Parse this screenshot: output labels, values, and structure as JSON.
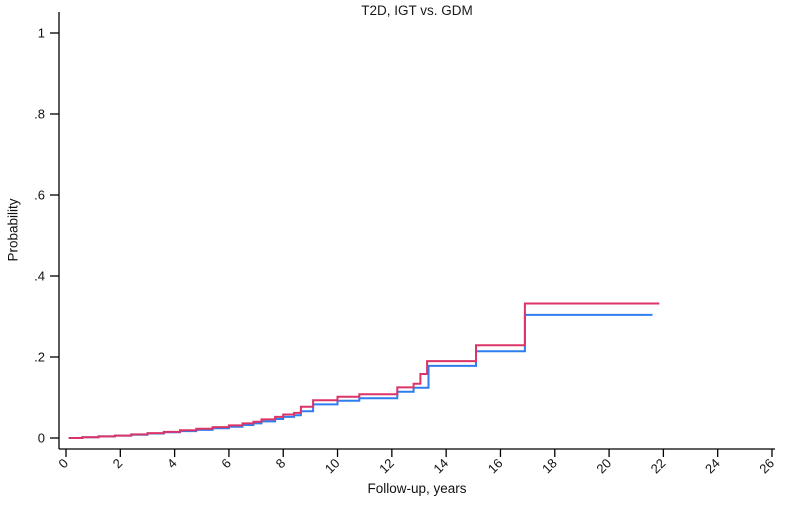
{
  "chart_data": {
    "type": "line",
    "subtype": "step",
    "title": "T2D, IGT vs. GDM",
    "xlabel": "Follow-up, years",
    "ylabel": "Probability",
    "xlim": [
      0,
      26
    ],
    "ylim": [
      0,
      1
    ],
    "xticks": [
      0,
      2,
      4,
      6,
      8,
      10,
      12,
      14,
      16,
      18,
      20,
      22,
      24,
      26
    ],
    "ytick_values": [
      0,
      0.2,
      0.4,
      0.6,
      0.8,
      1
    ],
    "ytick_labels": [
      "0",
      ".2",
      ".4",
      ".6",
      ".8",
      "1"
    ],
    "grid": false,
    "legend_position": "none",
    "axis_color": "#000000",
    "background": "#ffffff",
    "x_tick_label_angle": 45,
    "series": [
      {
        "name": "blue-curve",
        "color": "#2e7ef0",
        "points": [
          [
            0.1,
            0.0
          ],
          [
            0.6,
            0.002
          ],
          [
            1.2,
            0.004
          ],
          [
            1.8,
            0.006
          ],
          [
            2.4,
            0.008
          ],
          [
            3.0,
            0.011
          ],
          [
            3.6,
            0.014
          ],
          [
            4.2,
            0.017
          ],
          [
            4.8,
            0.02
          ],
          [
            5.4,
            0.024
          ],
          [
            6.0,
            0.028
          ],
          [
            6.5,
            0.032
          ],
          [
            6.9,
            0.036
          ],
          [
            7.2,
            0.041
          ],
          [
            7.7,
            0.047
          ],
          [
            8.0,
            0.052
          ],
          [
            8.4,
            0.056
          ],
          [
            8.65,
            0.066
          ],
          [
            9.1,
            0.083
          ],
          [
            10.0,
            0.092
          ],
          [
            10.8,
            0.098
          ],
          [
            12.2,
            0.114
          ],
          [
            12.8,
            0.124
          ],
          [
            13.35,
            0.178
          ],
          [
            15.1,
            0.214
          ],
          [
            16.9,
            0.304
          ],
          [
            21.6,
            0.304
          ]
        ]
      },
      {
        "name": "red-curve",
        "color": "#dd3468",
        "points": [
          [
            0.1,
            0.0
          ],
          [
            0.6,
            0.002
          ],
          [
            1.2,
            0.004
          ],
          [
            1.8,
            0.006
          ],
          [
            2.4,
            0.009
          ],
          [
            3.0,
            0.012
          ],
          [
            3.6,
            0.015
          ],
          [
            4.2,
            0.019
          ],
          [
            4.8,
            0.023
          ],
          [
            5.4,
            0.027
          ],
          [
            6.0,
            0.031
          ],
          [
            6.5,
            0.036
          ],
          [
            6.9,
            0.04
          ],
          [
            7.2,
            0.046
          ],
          [
            7.7,
            0.052
          ],
          [
            8.0,
            0.058
          ],
          [
            8.4,
            0.062
          ],
          [
            8.65,
            0.077
          ],
          [
            9.1,
            0.093
          ],
          [
            10.0,
            0.102
          ],
          [
            10.8,
            0.108
          ],
          [
            12.2,
            0.125
          ],
          [
            12.8,
            0.134
          ],
          [
            13.05,
            0.158
          ],
          [
            13.3,
            0.19
          ],
          [
            15.1,
            0.229
          ],
          [
            16.9,
            0.332
          ],
          [
            21.85,
            0.332
          ]
        ]
      }
    ]
  }
}
